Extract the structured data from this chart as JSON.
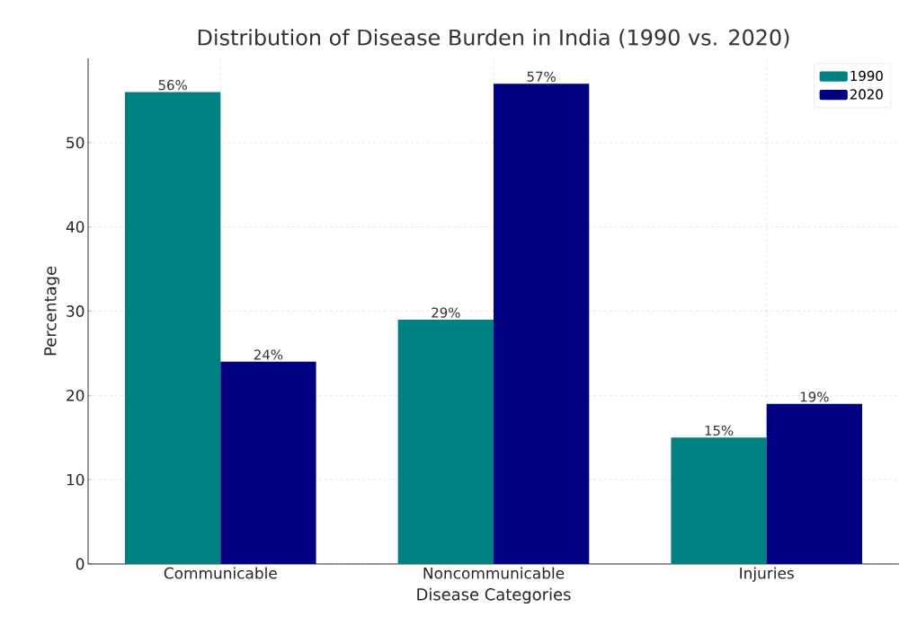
{
  "chart_data": {
    "type": "bar",
    "title": "Distribution of Disease Burden in India (1990 vs. 2020)",
    "xlabel": "Disease Categories",
    "ylabel": "Percentage",
    "categories": [
      "Communicable",
      "Noncommunicable",
      "Injuries"
    ],
    "series": [
      {
        "name": "1990",
        "color": "#008080",
        "values": [
          56,
          29,
          15
        ],
        "value_labels": [
          "56%",
          "29%",
          "15%"
        ]
      },
      {
        "name": "2020",
        "color": "#000080",
        "values": [
          24,
          57,
          19
        ],
        "value_labels": [
          "24%",
          "57%",
          "19%"
        ]
      }
    ],
    "ylim": [
      0,
      60
    ],
    "yticks": [
      0,
      10,
      20,
      30,
      40,
      50
    ],
    "grid": true,
    "legend": "top right"
  }
}
